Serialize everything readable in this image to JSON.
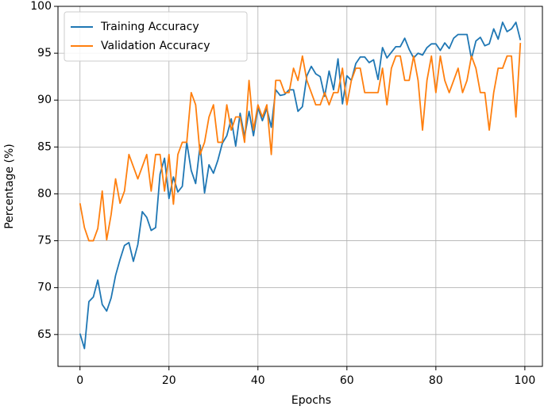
{
  "chart_data": {
    "type": "line",
    "x_label": "Epochs",
    "y_label": "Percentage (%)",
    "x": [
      0,
      1,
      2,
      3,
      4,
      5,
      6,
      7,
      8,
      9,
      10,
      11,
      12,
      13,
      14,
      15,
      16,
      17,
      18,
      19,
      20,
      21,
      22,
      23,
      24,
      25,
      26,
      27,
      28,
      29,
      30,
      31,
      32,
      33,
      34,
      35,
      36,
      37,
      38,
      39,
      40,
      41,
      42,
      43,
      44,
      45,
      46,
      47,
      48,
      49,
      50,
      51,
      52,
      53,
      54,
      55,
      56,
      57,
      58,
      59,
      60,
      61,
      62,
      63,
      64,
      65,
      66,
      67,
      68,
      69,
      70,
      71,
      72,
      73,
      74,
      75,
      76,
      77,
      78,
      79,
      80,
      81,
      82,
      83,
      84,
      85,
      86,
      87,
      88,
      89,
      90,
      91,
      92,
      93,
      94,
      95,
      96,
      97,
      98,
      99
    ],
    "series": [
      {
        "name": "Training Accuracy",
        "color": "#1f77b4",
        "values": [
          65.1,
          63.5,
          68.5,
          69,
          70.8,
          68.2,
          67.5,
          68.9,
          71.3,
          73,
          74.5,
          74.8,
          72.8,
          74.6,
          78.1,
          77.5,
          76.1,
          76.4,
          82.1,
          83.8,
          79.5,
          81.8,
          80.2,
          80.8,
          85.5,
          82.5,
          81.1,
          85.2,
          80.1,
          83.1,
          82.2,
          83.6,
          85.4,
          86.2,
          88,
          85.1,
          88.6,
          86.1,
          88.8,
          86.2,
          89.2,
          87.8,
          89.1,
          87.1,
          91.1,
          90.5,
          90.6,
          91.1,
          91.1,
          88.8,
          89.3,
          92.6,
          93.6,
          92.8,
          92.5,
          90.4,
          93.1,
          91.1,
          94.4,
          89.6,
          92.6,
          92.1,
          93.9,
          94.6,
          94.6,
          94,
          94.3,
          92.2,
          95.6,
          94.5,
          95.1,
          95.7,
          95.7,
          96.6,
          95.4,
          94.5,
          95,
          94.8,
          95.6,
          96,
          96,
          95.3,
          96.1,
          95.5,
          96.6,
          97,
          97,
          97,
          94.4,
          96.3,
          96.7,
          95.8,
          96,
          97.6,
          96.5,
          98.3,
          97.3,
          97.6,
          98.3,
          96.4
        ]
      },
      {
        "name": "Validation Accuracy",
        "color": "#ff7f0e",
        "values": [
          79,
          76.4,
          75,
          75,
          76.3,
          80.3,
          75.1,
          77.8,
          81.6,
          79,
          80.3,
          84.2,
          82.9,
          81.6,
          82.9,
          84.2,
          80.3,
          84.2,
          84.2,
          80.3,
          84.2,
          78.9,
          84.2,
          85.5,
          85.5,
          90.8,
          89.5,
          84.2,
          85.5,
          88.2,
          89.5,
          85.5,
          85.5,
          89.5,
          86.8,
          88.2,
          88.2,
          85.5,
          92.1,
          86.8,
          89.5,
          88.2,
          89.5,
          84.2,
          92.1,
          92.1,
          90.8,
          90.8,
          93.4,
          92.1,
          94.7,
          92.1,
          90.8,
          89.5,
          89.5,
          90.8,
          89.5,
          90.8,
          90.8,
          93.4,
          89.5,
          92.1,
          93.4,
          93.4,
          90.8,
          90.8,
          90.8,
          90.8,
          93.4,
          89.5,
          93.4,
          94.7,
          94.7,
          92.1,
          92.1,
          94.7,
          92.1,
          86.8,
          92.1,
          94.7,
          90.8,
          94.7,
          92.1,
          90.8,
          92.1,
          93.4,
          90.8,
          92.1,
          94.7,
          93.4,
          90.8,
          90.8,
          86.8,
          90.8,
          93.4,
          93.4,
          94.7,
          94.7,
          88.2,
          96.1
        ]
      }
    ],
    "xlim": [
      -4.95,
      103.95
    ],
    "ylim": [
      61.6,
      100
    ],
    "xticks": [
      0,
      20,
      40,
      60,
      80,
      100
    ],
    "yticks": [
      65,
      70,
      75,
      80,
      85,
      90,
      95,
      100
    ],
    "grid": true,
    "legend": "upper left"
  }
}
